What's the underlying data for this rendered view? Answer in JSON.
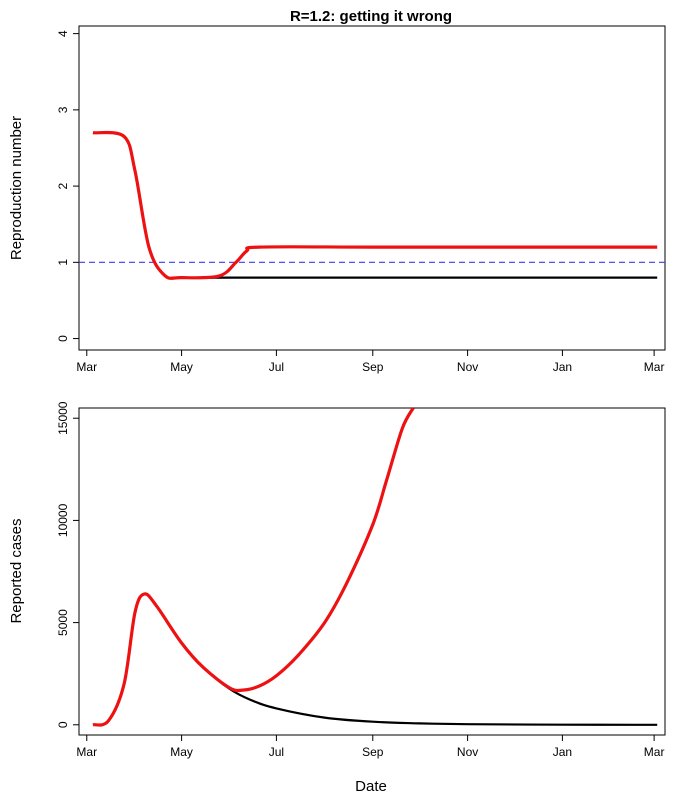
{
  "figure_title": "R=1.2: getting it wrong",
  "x_axis_label": "Date",
  "colors": {
    "counterfactual": "#000000",
    "scenario": "#ee1111",
    "reference": "#3b3bf5"
  },
  "chart_data": [
    {
      "type": "line",
      "title": "R=1.2: getting it wrong",
      "xlabel": "",
      "ylabel": "Reproduction number",
      "x_ticks": [
        "Mar",
        "May",
        "Jul",
        "Sep",
        "Nov",
        "Jan",
        "Mar"
      ],
      "y_ticks": [
        "0",
        "1",
        "2",
        "3",
        "4"
      ],
      "xlim": [
        "2020-02-25",
        "2021-03-08"
      ],
      "ylim": [
        -0.15,
        4.1
      ],
      "grid": false,
      "reference_line": {
        "y": 1.0,
        "style": "dashed",
        "color": "#3b3bf5"
      },
      "series": [
        {
          "color": "#000000",
          "points": [
            [
              "2020-03-05",
              2.7
            ],
            [
              "2020-03-25",
              2.65
            ],
            [
              "2020-04-01",
              2.2
            ],
            [
              "2020-04-10",
              1.2
            ],
            [
              "2020-04-20",
              0.83
            ],
            [
              "2020-05-01",
              0.8
            ],
            [
              "2020-06-01",
              0.8
            ],
            [
              "2020-09-01",
              0.8
            ],
            [
              "2020-12-01",
              0.8
            ],
            [
              "2021-03-03",
              0.8
            ]
          ]
        },
        {
          "color": "#ee1111",
          "points": [
            [
              "2020-03-05",
              2.7
            ],
            [
              "2020-03-25",
              2.65
            ],
            [
              "2020-04-01",
              2.2
            ],
            [
              "2020-04-10",
              1.2
            ],
            [
              "2020-04-20",
              0.83
            ],
            [
              "2020-05-01",
              0.8
            ],
            [
              "2020-05-25",
              0.82
            ],
            [
              "2020-06-05",
              1.0
            ],
            [
              "2020-06-12",
              1.15
            ],
            [
              "2020-06-20",
              1.2
            ],
            [
              "2020-09-01",
              1.2
            ],
            [
              "2020-12-01",
              1.2
            ],
            [
              "2021-03-03",
              1.2
            ]
          ]
        }
      ]
    },
    {
      "type": "line",
      "title": "",
      "xlabel": "Date",
      "ylabel": "Reported cases",
      "x_ticks": [
        "Mar",
        "May",
        "Jul",
        "Sep",
        "Nov",
        "Jan",
        "Mar"
      ],
      "y_ticks": [
        "0",
        "5000",
        "10000",
        "15000"
      ],
      "xlim": [
        "2020-02-25",
        "2021-03-08"
      ],
      "ylim": [
        -500,
        15500
      ],
      "grid": false,
      "series": [
        {
          "color": "#000000",
          "points": [
            [
              "2020-03-05",
              0
            ],
            [
              "2020-03-15",
              200
            ],
            [
              "2020-03-25",
              2000
            ],
            [
              "2020-04-01",
              5500
            ],
            [
              "2020-04-07",
              6400
            ],
            [
              "2020-04-15",
              5800
            ],
            [
              "2020-05-01",
              4000
            ],
            [
              "2020-05-15",
              2800
            ],
            [
              "2020-06-01",
              1750
            ],
            [
              "2020-06-15",
              1200
            ],
            [
              "2020-07-01",
              800
            ],
            [
              "2020-08-01",
              350
            ],
            [
              "2020-09-01",
              150
            ],
            [
              "2020-10-01",
              70
            ],
            [
              "2020-11-01",
              30
            ],
            [
              "2021-01-01",
              5
            ],
            [
              "2021-03-03",
              0
            ]
          ]
        },
        {
          "color": "#ee1111",
          "points": [
            [
              "2020-03-05",
              0
            ],
            [
              "2020-03-15",
              200
            ],
            [
              "2020-03-25",
              2000
            ],
            [
              "2020-04-01",
              5500
            ],
            [
              "2020-04-07",
              6400
            ],
            [
              "2020-04-15",
              5800
            ],
            [
              "2020-05-01",
              4000
            ],
            [
              "2020-05-15",
              2800
            ],
            [
              "2020-06-01",
              1800
            ],
            [
              "2020-06-10",
              1700
            ],
            [
              "2020-06-20",
              1900
            ],
            [
              "2020-07-01",
              2400
            ],
            [
              "2020-07-15",
              3400
            ],
            [
              "2020-08-01",
              5000
            ],
            [
              "2020-08-15",
              6900
            ],
            [
              "2020-09-01",
              9800
            ],
            [
              "2020-09-10",
              12000
            ],
            [
              "2020-09-20",
              14500
            ],
            [
              "2020-09-27",
              15500
            ]
          ]
        }
      ]
    }
  ]
}
